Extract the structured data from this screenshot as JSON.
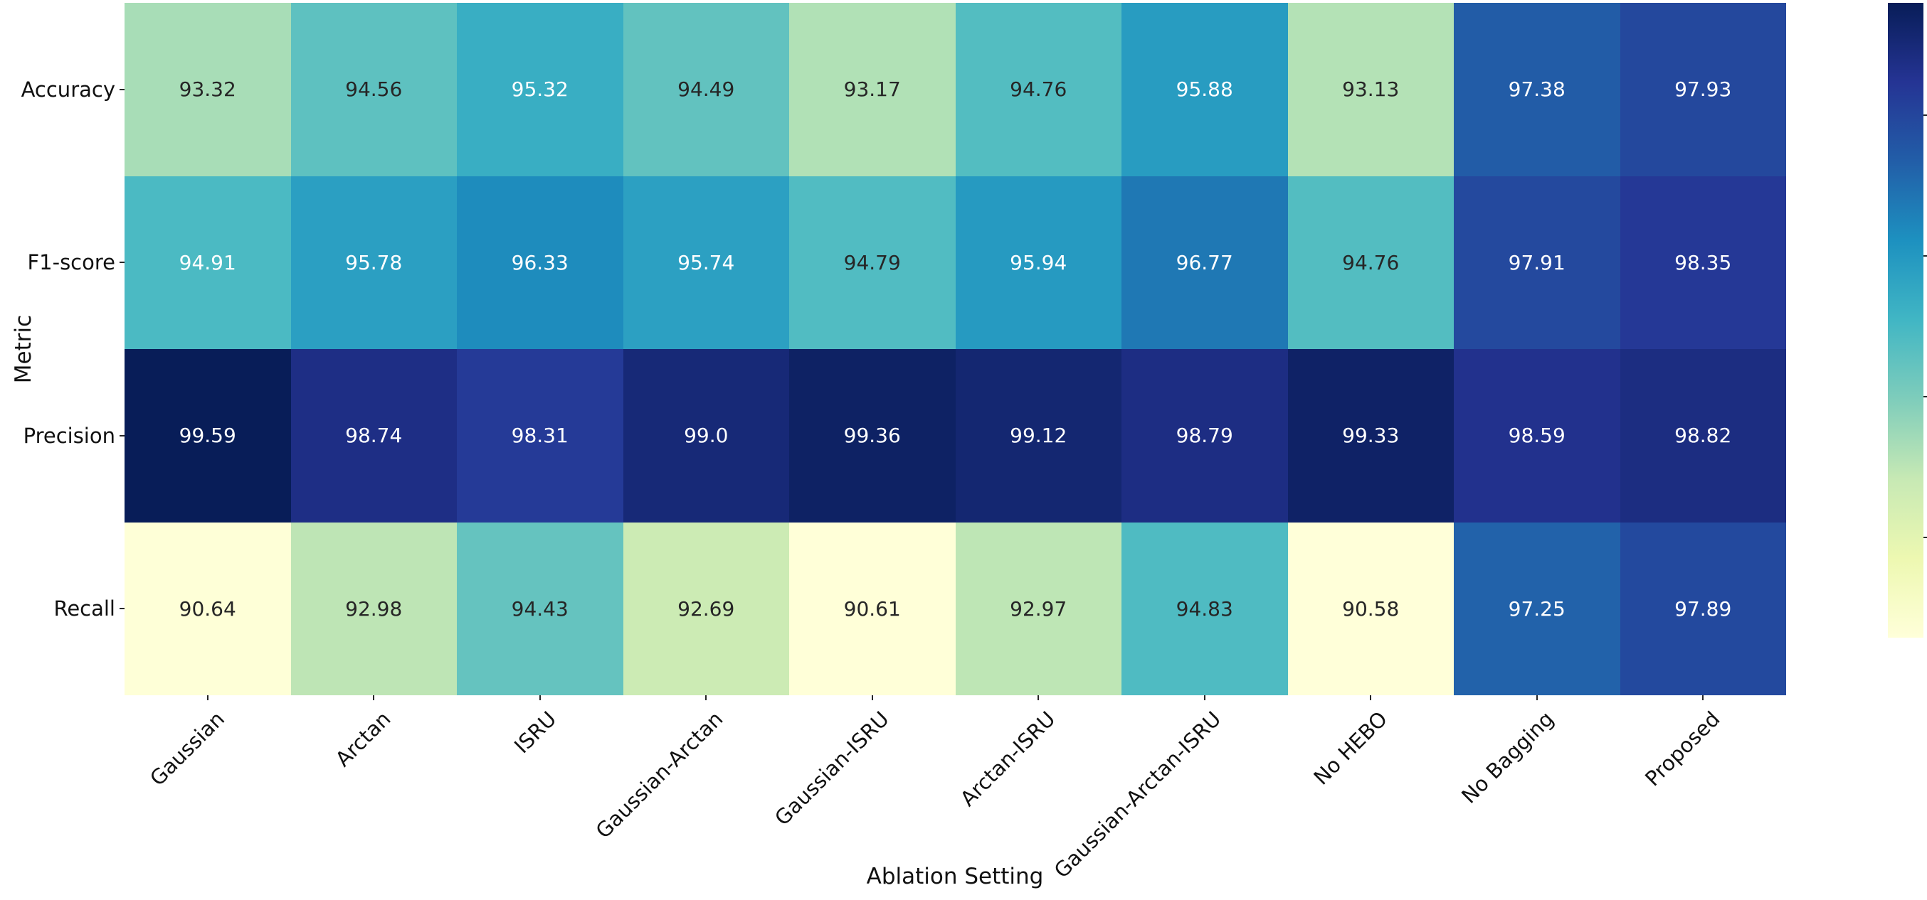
{
  "figure": {
    "background": "#ffffff"
  },
  "chart_data": {
    "type": "heatmap",
    "title": "",
    "xlabel": "Ablation Setting",
    "ylabel": "Metric",
    "columns": [
      "Gaussian",
      "Arctan",
      "ISRU",
      "Gaussian-Arctan",
      "Gaussian-ISRU",
      "Arctan-ISRU",
      "Gaussian-Arctan-ISRU",
      "No HEBO",
      "No Bagging",
      "Proposed"
    ],
    "rows": [
      "Accuracy",
      "F1-score",
      "Precision",
      "Recall"
    ],
    "values": [
      [
        "93.32",
        "94.56",
        "95.32",
        "94.49",
        "93.17",
        "94.76",
        "95.88",
        "93.13",
        "97.38",
        "97.93"
      ],
      [
        "94.91",
        "95.78",
        "96.33",
        "95.74",
        "94.79",
        "95.94",
        "96.77",
        "94.76",
        "97.91",
        "98.35"
      ],
      [
        "99.59",
        "98.74",
        "98.31",
        "99.0",
        "99.36",
        "99.12",
        "98.79",
        "99.33",
        "98.59",
        "98.82"
      ],
      [
        "90.64",
        "92.98",
        "94.43",
        "92.69",
        "90.61",
        "92.97",
        "94.83",
        "90.58",
        "97.25",
        "97.89"
      ]
    ],
    "colormap": "YlGnBu",
    "colormap_stops": [
      "#ffffd9",
      "#edf8b1",
      "#c7e9b4",
      "#7fcdbb",
      "#41b6c4",
      "#1d91c0",
      "#225ea8",
      "#253494",
      "#081d58"
    ],
    "vmin": 90.58,
    "vmax": 99.59,
    "annotation_colors": {
      "dark": "#262626",
      "light": "#ffffff"
    },
    "legend_position": "right-colorbar",
    "colorbar": {
      "tick_values": [
        98,
        96,
        94,
        92
      ]
    },
    "grid": false
  }
}
